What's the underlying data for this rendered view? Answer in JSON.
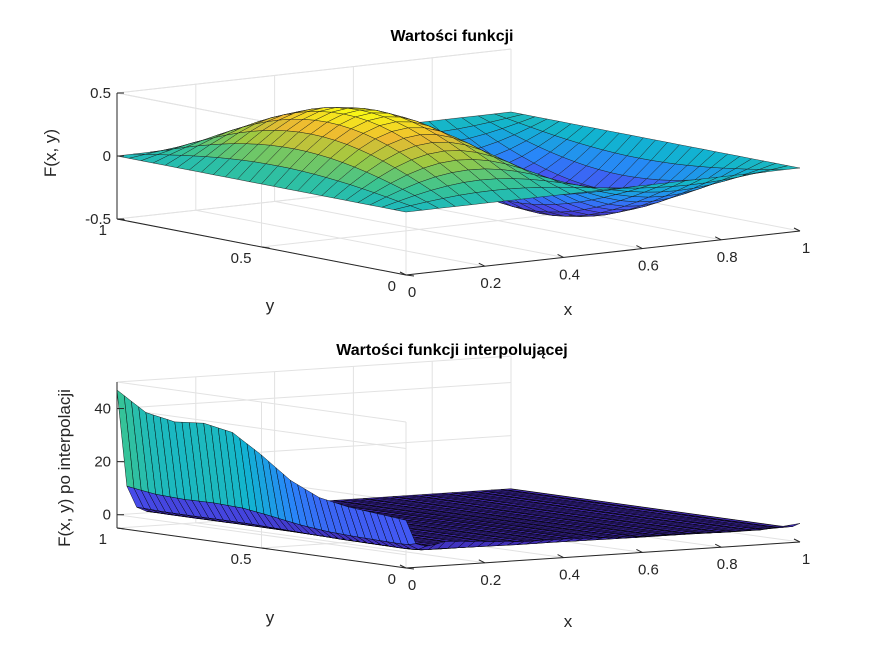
{
  "chart_data": [
    {
      "type": "surface",
      "title": "Wartości funkcji",
      "xlabel": "x",
      "ylabel": "y",
      "zlabel": "F(x, y)",
      "xlim": [
        0,
        1
      ],
      "ylim": [
        0,
        1
      ],
      "zlim": [
        -0.5,
        0.5
      ],
      "x_ticks": [
        "0",
        "0.2",
        "0.4",
        "0.6",
        "0.8",
        "1"
      ],
      "y_ticks": [
        "0",
        "0.5",
        "1"
      ],
      "z_ticks": [
        "-0.5",
        "0",
        "0.5"
      ],
      "grid": true,
      "colormap": "parula",
      "function_shape": "0.5*sin(2*pi*x)*sin(pi*y)"
    },
    {
      "type": "surface",
      "title": "Wartości funkcji interpolującej",
      "xlabel": "x",
      "ylabel": "y",
      "zlabel": "F(x, y) po interpolacji",
      "xlim": [
        0,
        1
      ],
      "ylim": [
        0,
        1
      ],
      "zlim": [
        -5,
        50
      ],
      "x_ticks": [
        "0",
        "0.2",
        "0.4",
        "0.6",
        "0.8",
        "1"
      ],
      "y_ticks": [
        "0",
        "0.5",
        "1"
      ],
      "z_ticks": [
        "0",
        "20",
        "40"
      ],
      "grid": true,
      "colormap": "parula",
      "edge_ridge": {
        "axis": "x=0",
        "y": [
          0,
          0.1,
          0.2,
          0.3,
          0.4,
          0.5,
          0.6,
          0.7,
          0.8,
          0.9,
          1.0
        ],
        "z": [
          13,
          14,
          15,
          17,
          22,
          30,
          37,
          39,
          38,
          40,
          47
        ]
      },
      "edge_ridge_2": {
        "axis": "y=0",
        "x": [
          0,
          0.1,
          0.2,
          0.3,
          0.4,
          0.5,
          0.6,
          0.7,
          0.8,
          0.9,
          1.0
        ],
        "z": [
          0,
          4,
          3,
          2,
          2,
          1.5,
          1,
          1,
          0.5,
          0.5,
          2
        ]
      }
    }
  ]
}
